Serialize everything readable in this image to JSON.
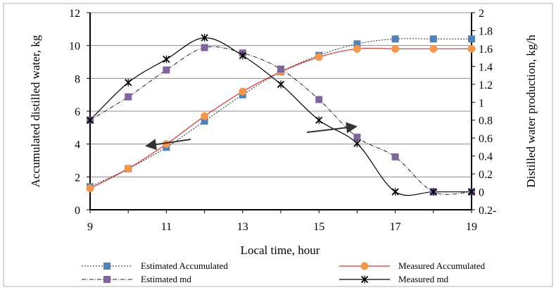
{
  "chart_data": {
    "type": "line",
    "xlabel": "Local time, hour",
    "ylabel_left": "Accumulated distilled water, kg",
    "ylabel_right": "Distilled water production, kg/h",
    "xlim": [
      9,
      19
    ],
    "ylim_left": [
      0,
      12
    ],
    "ylim_right": [
      -0.2,
      2
    ],
    "x_ticks": [
      "9",
      "11",
      "13",
      "15",
      "17",
      "19"
    ],
    "y_left_ticks": [
      "0",
      "2",
      "4",
      "6",
      "8",
      "10",
      "12"
    ],
    "y_right_ticks": [
      "0.2-",
      "0",
      "0.2",
      "0.4",
      "0.6",
      "0.8",
      "1",
      "1.2",
      "1.4",
      "1.6",
      "1.8",
      "2"
    ],
    "grid": true,
    "legend_position": "bottom",
    "series": [
      {
        "name": "Estimated Accumulated",
        "axis": "left",
        "x": [
          9,
          10,
          11,
          12,
          13,
          14,
          15,
          16,
          17,
          18,
          19
        ],
        "y": [
          1.4,
          2.5,
          3.8,
          5.4,
          7.0,
          8.4,
          9.4,
          10.1,
          10.4,
          10.4,
          10.4
        ],
        "marker": "square",
        "color": "#4f81bd",
        "line": "dotted"
      },
      {
        "name": "Measured Accumulated",
        "axis": "left",
        "x": [
          9,
          10,
          11,
          12,
          13,
          14,
          15,
          16,
          17,
          18,
          19
        ],
        "y": [
          1.3,
          2.5,
          4.0,
          5.7,
          7.2,
          8.4,
          9.3,
          9.8,
          9.8,
          9.8,
          9.8
        ],
        "marker": "circle",
        "color": "#f79646",
        "line": "solid-red"
      },
      {
        "name": "Estimated md",
        "axis": "right",
        "x": [
          9,
          10,
          11,
          12,
          13,
          14,
          15,
          16,
          17,
          18,
          19
        ],
        "y": [
          0.8,
          1.06,
          1.36,
          1.61,
          1.55,
          1.37,
          1.03,
          0.61,
          0.39,
          0.0,
          0.0
        ],
        "marker": "square",
        "color": "#8064a2",
        "line": "dash-dot"
      },
      {
        "name": "Measured md",
        "axis": "right",
        "x": [
          9,
          10,
          11,
          12,
          13,
          14,
          15,
          16,
          17,
          18,
          19
        ],
        "y": [
          0.8,
          1.22,
          1.48,
          1.72,
          1.52,
          1.2,
          0.8,
          0.54,
          0.0,
          0.0,
          0.0
        ],
        "marker": "x",
        "color": "#000000",
        "line": "solid"
      }
    ]
  }
}
